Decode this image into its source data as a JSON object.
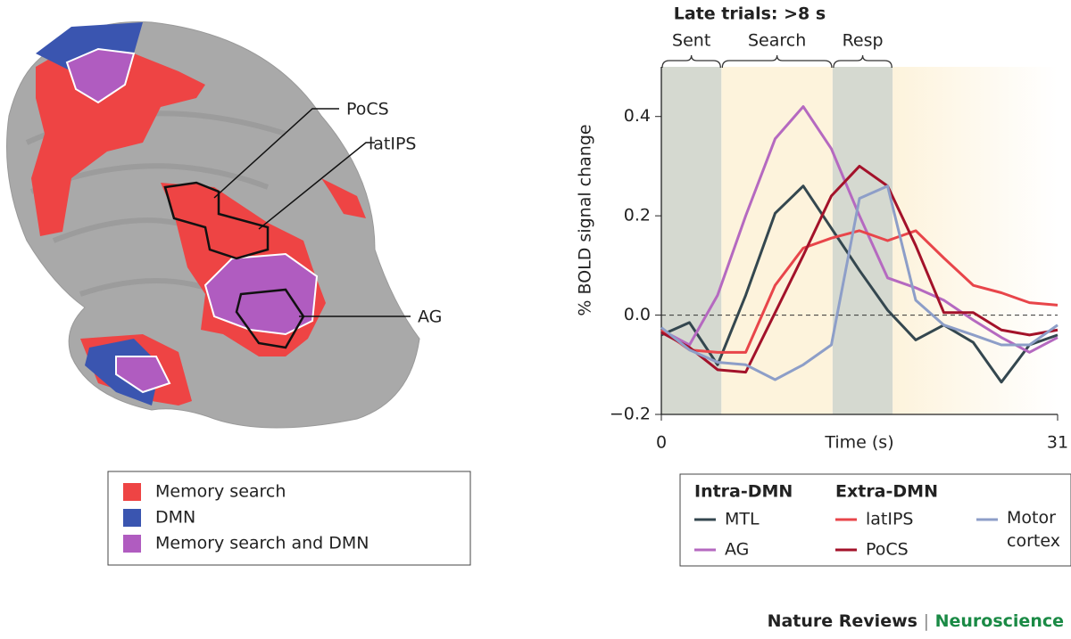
{
  "brain": {
    "labels": [
      "PoCS",
      "latIPS",
      "AG"
    ],
    "legend": [
      {
        "name": "Memory search",
        "color": "#ee4444"
      },
      {
        "name": "DMN",
        "color": "#3a55b0"
      },
      {
        "name": "Memory search and DMN",
        "color": "#b05cc0"
      }
    ]
  },
  "chart_data": {
    "type": "line",
    "title": "Late trials: >8 s",
    "xlabel": "Time (s)",
    "ylabel": "% BOLD signal change",
    "periods": [
      {
        "label": "Sent",
        "start": 0,
        "end": 4.7
      },
      {
        "label": "Search",
        "start": 4.7,
        "end": 13.4
      },
      {
        "label": "Resp",
        "start": 13.4,
        "end": 18.1
      }
    ],
    "x": [
      0,
      2.2,
      4.4,
      6.6,
      8.9,
      11.1,
      13.3,
      15.5,
      17.7,
      19.9,
      22.1,
      24.4,
      26.6,
      28.8,
      31
    ],
    "series": [
      {
        "name": "MTL",
        "color": "#34474f",
        "values": [
          -0.04,
          -0.015,
          -0.1,
          0.04,
          0.205,
          0.26,
          0.175,
          0.09,
          0.01,
          -0.05,
          -0.02,
          -0.055,
          -0.135,
          -0.06,
          -0.04
        ]
      },
      {
        "name": "AG",
        "color": "#b569c0",
        "values": [
          -0.03,
          -0.06,
          0.04,
          0.2,
          0.355,
          0.42,
          0.335,
          0.2,
          0.075,
          0.055,
          0.03,
          -0.01,
          -0.045,
          -0.075,
          -0.045
        ]
      },
      {
        "name": "latIPS",
        "color": "#e8454a",
        "values": [
          -0.03,
          -0.07,
          -0.075,
          -0.075,
          0.06,
          0.135,
          0.155,
          0.17,
          0.15,
          0.17,
          0.115,
          0.06,
          0.045,
          0.025,
          0.02
        ]
      },
      {
        "name": "PoCS",
        "color": "#a3122a",
        "values": [
          -0.035,
          -0.065,
          -0.11,
          -0.115,
          0.005,
          0.12,
          0.24,
          0.3,
          0.26,
          0.14,
          0.005,
          0.005,
          -0.03,
          -0.04,
          -0.03
        ]
      },
      {
        "name": "Motor cortex",
        "color": "#8d9ec8",
        "values": [
          -0.025,
          -0.07,
          -0.095,
          -0.1,
          -0.13,
          -0.1,
          -0.06,
          0.235,
          0.26,
          0.03,
          -0.02,
          -0.04,
          -0.06,
          -0.06,
          -0.02
        ]
      }
    ],
    "legend_titles": [
      "Intra-DMN",
      "Extra-DMN"
    ],
    "xlim": [
      0,
      31
    ],
    "xticks": [
      0,
      31
    ],
    "ylim": [
      -0.2,
      0.5
    ],
    "yticks": [
      {
        "value": -0.2,
        "label": "−0.2"
      },
      {
        "value": 0,
        "label": "0.0"
      },
      0.2,
      0.4
    ],
    "zero_line": true
  },
  "footer": {
    "journal": "Nature Reviews",
    "separator": "|",
    "section": "Neuroscience"
  }
}
